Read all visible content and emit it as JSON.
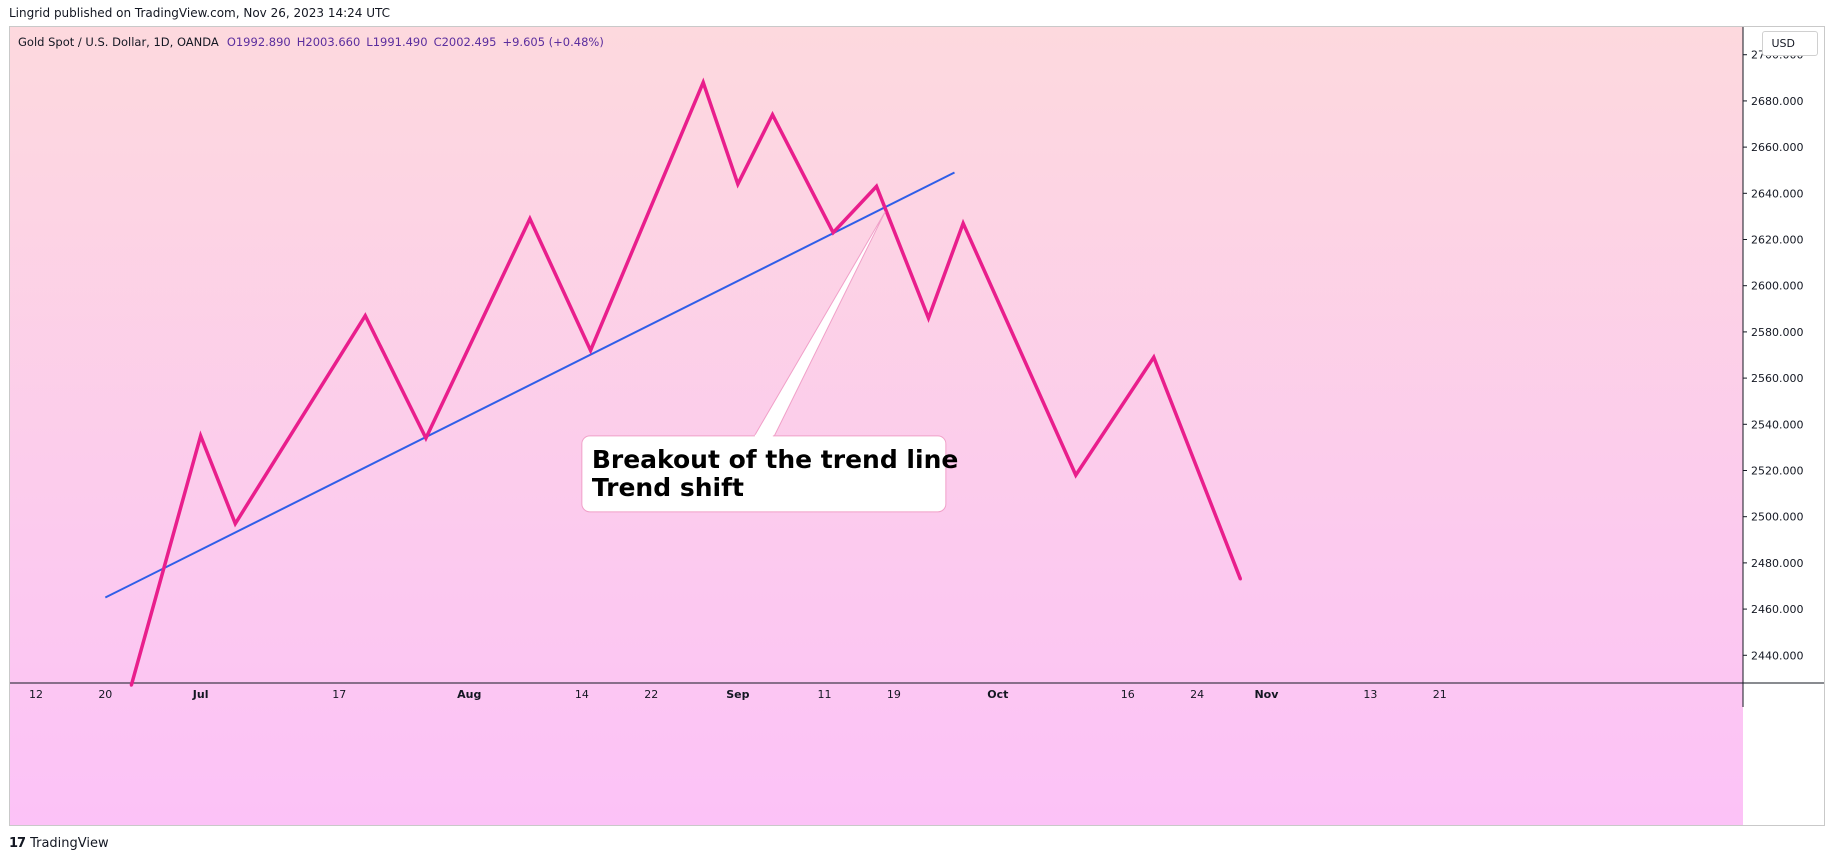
{
  "header": {
    "publish_line": "Lingrid published on TradingView.com, Nov 26, 2023 14:24 UTC"
  },
  "legend": {
    "symbol": "Gold Spot / U.S. Dollar, 1D, OANDA",
    "open": "O1992.890",
    "high": "H2003.660",
    "low": "L1991.490",
    "close": "C2002.495",
    "change": "+9.605 (+0.48%)"
  },
  "currency": "USD",
  "footer": {
    "brand": "TradingView",
    "logo": "tv-logo-icon"
  },
  "colors": {
    "price_line": "#e91e8c",
    "trend_line": "#2f5ee8",
    "background_top": "#fdd9de",
    "background_bottom": "#fcc2f7"
  },
  "chart_data": {
    "type": "line",
    "title": "",
    "xlabel": "",
    "ylabel": "",
    "y_axis_position": "right",
    "ylim": [
      2428,
      2712
    ],
    "xlim": [
      "2023-06-09",
      "2023-12-26"
    ],
    "yticks": [
      "2440.000",
      "2460.000",
      "2480.000",
      "2500.000",
      "2520.000",
      "2540.000",
      "2560.000",
      "2580.000",
      "2600.000",
      "2620.000",
      "2640.000",
      "2660.000",
      "2680.000",
      "2700.000"
    ],
    "xticks": [
      {
        "label": "12",
        "date": "2023-06-12"
      },
      {
        "label": "20",
        "date": "2023-06-20"
      },
      {
        "label": "Jul",
        "date": "2023-07-01"
      },
      {
        "label": "17",
        "date": "2023-07-17"
      },
      {
        "label": "Aug",
        "date": "2023-08-01"
      },
      {
        "label": "14",
        "date": "2023-08-14"
      },
      {
        "label": "22",
        "date": "2023-08-22"
      },
      {
        "label": "Sep",
        "date": "2023-09-01"
      },
      {
        "label": "11",
        "date": "2023-09-11"
      },
      {
        "label": "19",
        "date": "2023-09-19"
      },
      {
        "label": "Oct",
        "date": "2023-10-01"
      },
      {
        "label": "16",
        "date": "2023-10-16"
      },
      {
        "label": "24",
        "date": "2023-10-24"
      },
      {
        "label": "Nov",
        "date": "2023-11-01"
      },
      {
        "label": "13",
        "date": "2023-11-13"
      },
      {
        "label": "21",
        "date": "2023-11-21"
      }
    ],
    "series": [
      {
        "values": [
          {
            "x": "2023-06-23",
            "y": 2427
          },
          {
            "x": "2023-07-01",
            "y": 2535
          },
          {
            "x": "2023-07-05",
            "y": 2497
          },
          {
            "x": "2023-07-20",
            "y": 2587
          },
          {
            "x": "2023-07-27",
            "y": 2534
          },
          {
            "x": "2023-08-08",
            "y": 2629
          },
          {
            "x": "2023-08-15",
            "y": 2572
          },
          {
            "x": "2023-08-28",
            "y": 2688
          },
          {
            "x": "2023-09-01",
            "y": 2644
          },
          {
            "x": "2023-09-05",
            "y": 2674
          },
          {
            "x": "2023-09-12",
            "y": 2623
          },
          {
            "x": "2023-09-17",
            "y": 2643
          },
          {
            "x": "2023-09-23",
            "y": 2586
          },
          {
            "x": "2023-09-27",
            "y": 2627
          },
          {
            "x": "2023-10-10",
            "y": 2518
          },
          {
            "x": "2023-10-19",
            "y": 2569
          },
          {
            "x": "2023-10-29",
            "y": 2473
          }
        ]
      }
    ],
    "trend_line": {
      "start": {
        "x": "2023-06-20",
        "y": 2465
      },
      "end": {
        "x": "2023-09-26",
        "y": 2649
      }
    },
    "annotations": [
      {
        "lines": [
          "Breakout of the trend line",
          "Trend shift"
        ],
        "points_to": {
          "x": "2023-09-18",
          "y": 2632
        },
        "anchor": {
          "x": "2023-09-04",
          "y": 2535
        }
      }
    ]
  }
}
